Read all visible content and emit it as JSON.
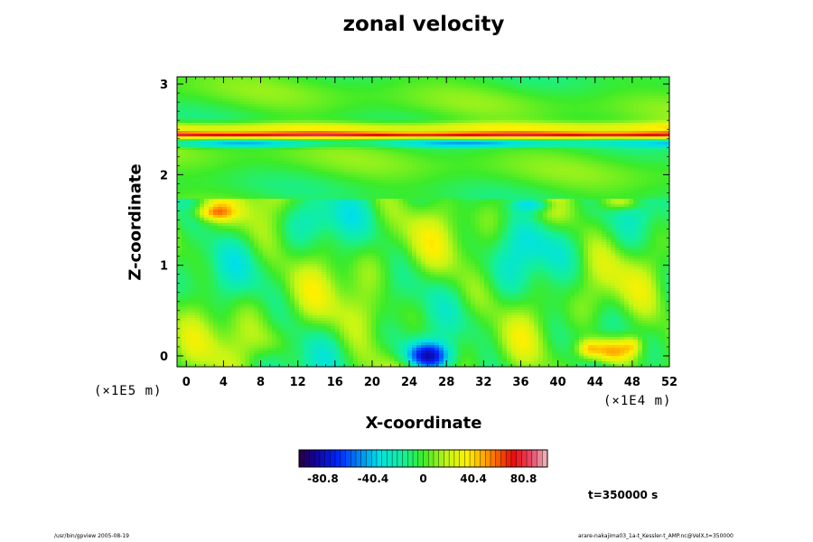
{
  "chart_data": {
    "type": "heatmap",
    "title": "zonal velocity",
    "xlabel": "X-coordinate",
    "ylabel": "Z-coordinate",
    "x_unit": "(×1E4 m)",
    "z_unit": "(×1E5 m)",
    "xlim": [
      -1,
      52
    ],
    "ylim": [
      -0.12,
      3.08
    ],
    "x_ticks": [
      "0",
      "4",
      "8",
      "12",
      "16",
      "20",
      "24",
      "28",
      "32",
      "36",
      "40",
      "44",
      "48",
      "52"
    ],
    "x_tick_values": [
      0,
      4,
      8,
      12,
      16,
      20,
      24,
      28,
      32,
      36,
      40,
      44,
      48,
      52
    ],
    "y_ticks": [
      "0",
      "1",
      "2",
      "3"
    ],
    "y_tick_values": [
      0,
      1,
      2,
      3
    ],
    "colorbar": {
      "range": [
        -100,
        100
      ],
      "tick_labels": [
        "-80.8",
        "-40.4",
        "0",
        "40.4",
        "80.8"
      ],
      "tick_values": [
        -80.8,
        -40.4,
        0,
        40.4,
        80.8
      ]
    },
    "time_label": "t=350000 s",
    "features": {
      "jet": {
        "z": 2.44,
        "value": 75
      },
      "counter_jet": {
        "z": 2.34,
        "value": -35
      },
      "lower_boundary_z": 1.74,
      "blobs": [
        {
          "x": 25.9,
          "z": 0.0,
          "value": -80
        },
        {
          "x": 45.5,
          "z": 0.05,
          "value": 70
        },
        {
          "x": 37.5,
          "z": 1.68,
          "value": -45
        },
        {
          "x": 3.0,
          "z": 1.58,
          "value": 40
        },
        {
          "x": 47.0,
          "z": 1.7,
          "value": 35
        }
      ]
    }
  },
  "footer": {
    "left": "/usr/bin/gpview 2005-08-19",
    "right": "arare-nakajima03_1a-t_Kessler-t_AMP.nc@VelX,t=350000"
  }
}
